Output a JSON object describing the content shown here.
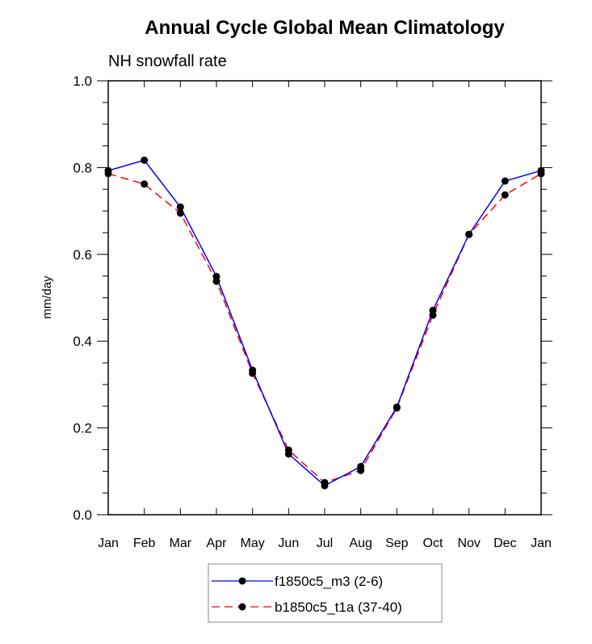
{
  "chart_data": {
    "type": "line",
    "title": "Annual Cycle Global Mean Climatology",
    "subtitle": "NH snowfall rate",
    "xlabel": "",
    "ylabel": "mm/day",
    "categories": [
      "Jan",
      "Feb",
      "Mar",
      "Apr",
      "May",
      "Jun",
      "Jul",
      "Aug",
      "Sep",
      "Oct",
      "Nov",
      "Dec",
      "Jan"
    ],
    "ylim": [
      0,
      1.0
    ],
    "yticks": [
      "0.0",
      "0.2",
      "0.4",
      "0.6",
      "0.8",
      "1.0"
    ],
    "grid": false,
    "legend_position": "bottom-center",
    "series": [
      {
        "name": "f1850c5_m3 (2-6)",
        "color": "#0000ff",
        "dash": "solid",
        "values": [
          0.793,
          0.817,
          0.709,
          0.549,
          0.333,
          0.14,
          0.067,
          0.111,
          0.248,
          0.471,
          0.646,
          0.769,
          0.793
        ]
      },
      {
        "name": "b1850c5_t1a (37-40)",
        "color": "#ff0000",
        "dash": "dashed",
        "values": [
          0.786,
          0.762,
          0.695,
          0.538,
          0.326,
          0.149,
          0.074,
          0.102,
          0.246,
          0.46,
          0.646,
          0.737,
          0.786
        ]
      }
    ]
  }
}
